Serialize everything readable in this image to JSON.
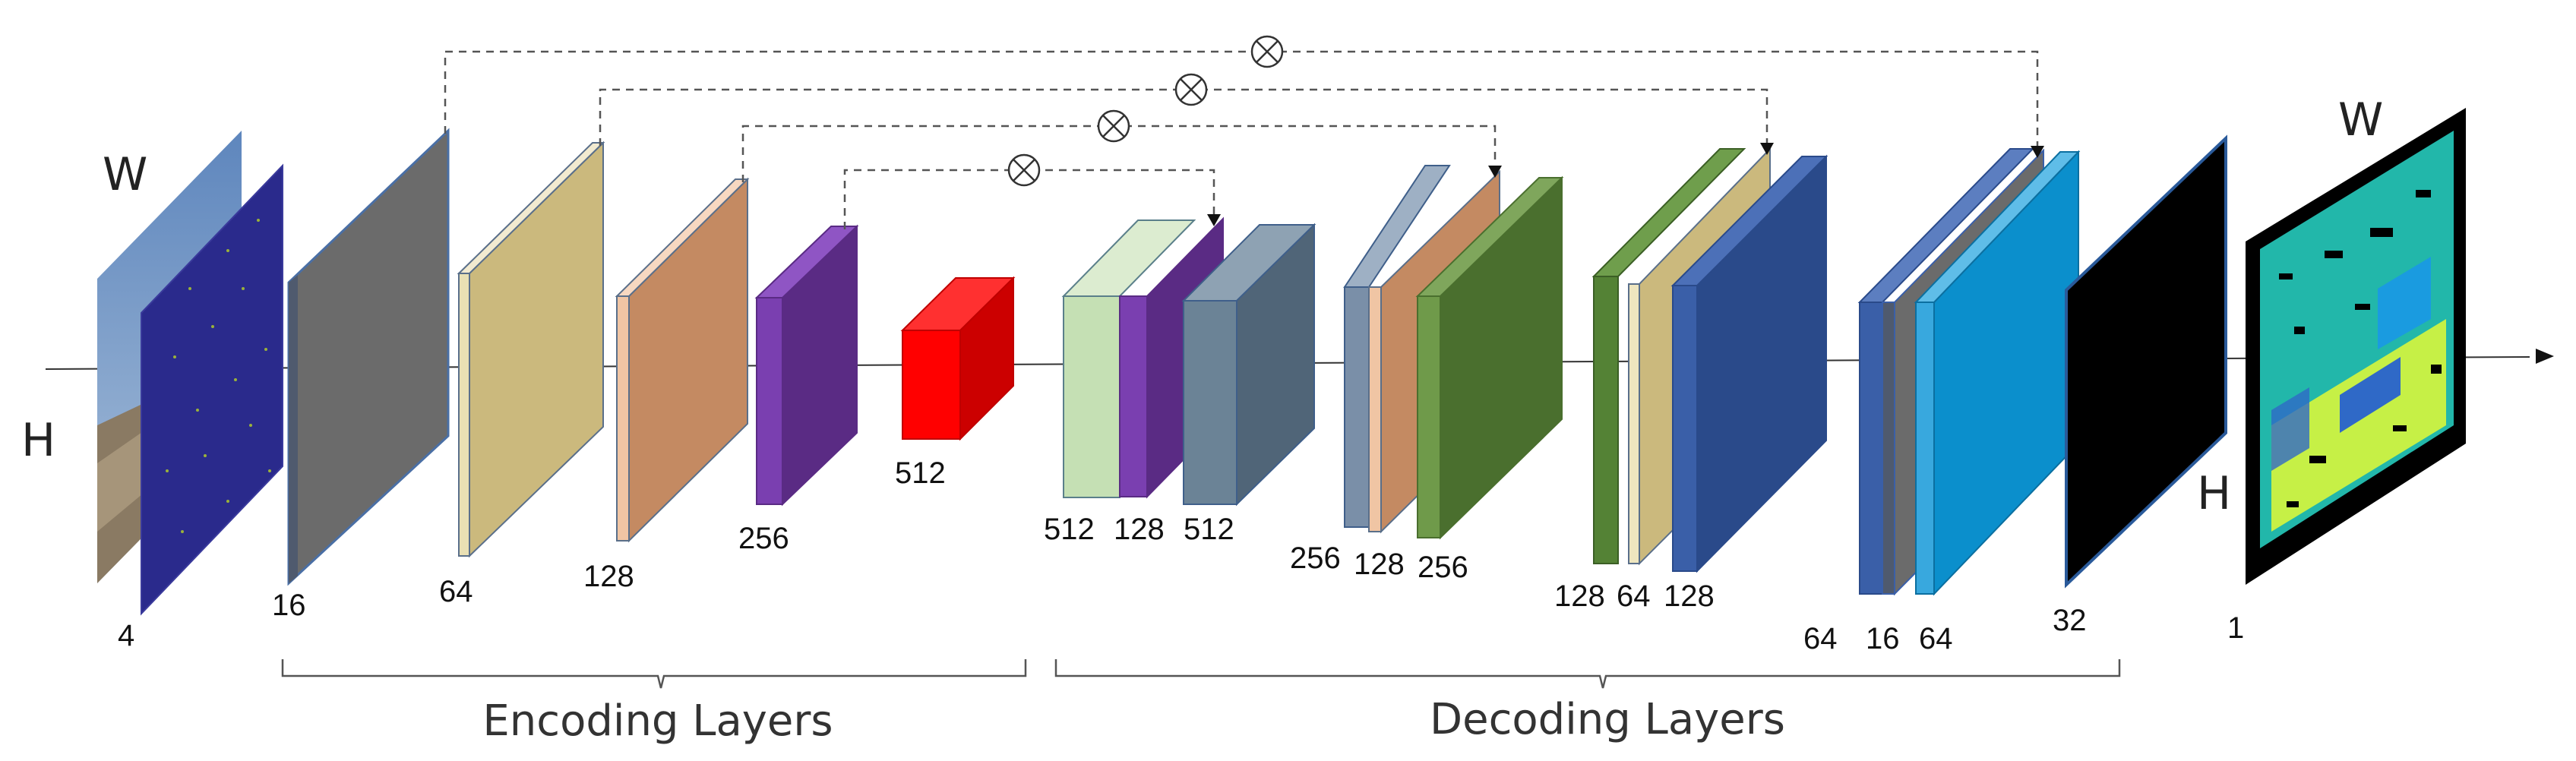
{
  "input": {
    "channels": "4",
    "dim_w": "W",
    "dim_h": "H",
    "colors": {
      "sky": "#7fa3cc",
      "ground": "#7a6a55",
      "sparse_bg": "#2a2a8c"
    }
  },
  "output": {
    "channels": "1",
    "dim_w": "W",
    "dim_h": "H",
    "colors": {
      "bg": "#000000",
      "depth_a": "#28d7c8",
      "depth_b": "#c6f046",
      "depth_c": "#2f69c7"
    }
  },
  "encoder": {
    "section_label": "Encoding Layers",
    "layers": [
      {
        "channels": "16",
        "face": "#6b6b6b",
        "side": "#4f5a6e",
        "edge": "#4a6fa5"
      },
      {
        "channels": "64",
        "face": "#cbb97d",
        "side": "#e9e0b4",
        "edge": "#5a6f8a"
      },
      {
        "channels": "128",
        "face": "#c48a62",
        "side": "#f0c5a4",
        "edge": "#5a6f8a"
      },
      {
        "channels": "256",
        "face": "#5a2b84",
        "side": "#7a3fb0",
        "edge": "#5a2b84"
      }
    ]
  },
  "bottleneck": {
    "channels": "512",
    "front": "#ff0000",
    "top": "#ff3030",
    "side": "#cc0000"
  },
  "decoder": {
    "section_label": "Decoding Layers",
    "groups": [
      {
        "labels": [
          "512",
          "128",
          "512"
        ],
        "colors": [
          "#c5e0b4",
          "#5a2b84",
          "#6b8396"
        ]
      },
      {
        "labels": [
          "256",
          "128",
          "256"
        ],
        "colors": [
          "#7a8fa8",
          "#c48a62",
          "#4a6f2e"
        ]
      },
      {
        "labels": [
          "128",
          "64",
          "128"
        ],
        "colors": [
          "#548235",
          "#cbb97d",
          "#2a4a8a"
        ]
      },
      {
        "labels": [
          "64",
          "16",
          "64"
        ],
        "colors": [
          "#3a5fa8",
          "#6b6b6b",
          "#0b8fcc"
        ]
      },
      {
        "labels": [
          "32"
        ],
        "colors": [
          "#000000"
        ]
      }
    ]
  },
  "skip_connection_symbol": "⊗",
  "colors": {
    "connector": "#555555",
    "arrow": "#111111",
    "axis": "#333333"
  }
}
